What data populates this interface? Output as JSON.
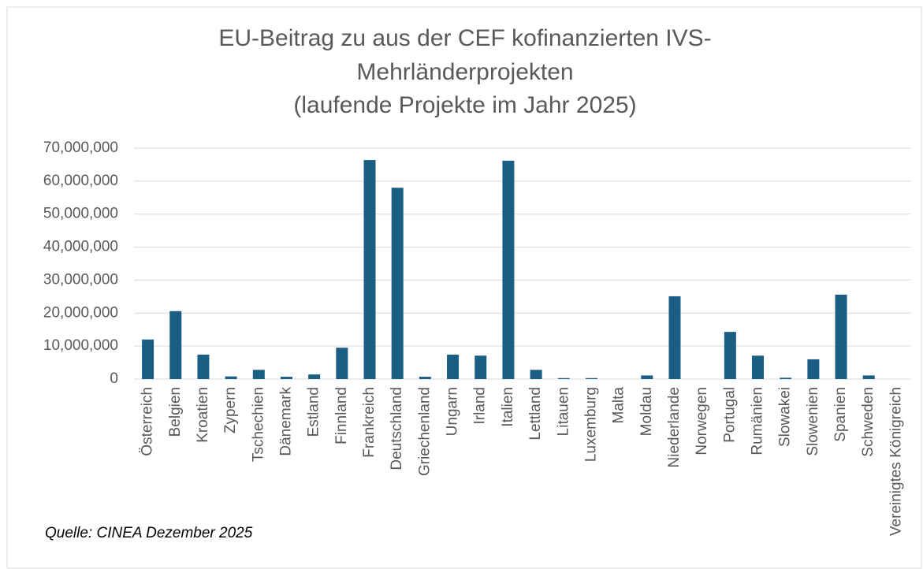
{
  "chart_data": {
    "type": "bar",
    "title": [
      "EU-Beitrag zu aus der CEF kofinanzierten IVS-",
      "Mehrländerprojekten",
      "(laufende Projekte im Jahr 2025)"
    ],
    "categories": [
      "Österreich",
      "Belgien",
      "Kroatien",
      "Zypern",
      "Tschechien",
      "Dänemark",
      "Estland",
      "Finnland",
      "Frankreich",
      "Deutschland",
      "Griechenland",
      "Ungarn",
      "Irland",
      "Italien",
      "Lettland",
      "Litauen",
      "Luxemburg",
      "Malta",
      "Moldau",
      "Niederlande",
      "Norwegen",
      "Portugal",
      "Rumänien",
      "Slowakei",
      "Slowenien",
      "Spanien",
      "Schweden",
      "Vereinigtes Königreich"
    ],
    "values": [
      12000000,
      20600000,
      7400000,
      800000,
      2800000,
      700000,
      1400000,
      9500000,
      66400000,
      58000000,
      700000,
      7400000,
      7100000,
      66200000,
      2800000,
      300000,
      300000,
      0,
      1100000,
      25100000,
      0,
      14300000,
      7100000,
      400000,
      6000000,
      25600000,
      1100000,
      0
    ],
    "color": "#1a5e84",
    "ylim": [
      0,
      70000000
    ],
    "yticks": [
      0,
      {
        "value": 10000000,
        "label": "10,000,000"
      },
      {
        "value": 20000000,
        "label": "20,000,000"
      },
      {
        "value": 30000000,
        "label": "30,000,000"
      },
      {
        "value": 40000000,
        "label": "40,000,000"
      },
      {
        "value": 50000000,
        "label": "50,000,000"
      },
      {
        "value": 60000000,
        "label": "60,000,000"
      },
      {
        "value": 70000000,
        "label": "70,000,000"
      }
    ],
    "grid": true,
    "source": "Quelle: CINEA Dezember 2025"
  }
}
